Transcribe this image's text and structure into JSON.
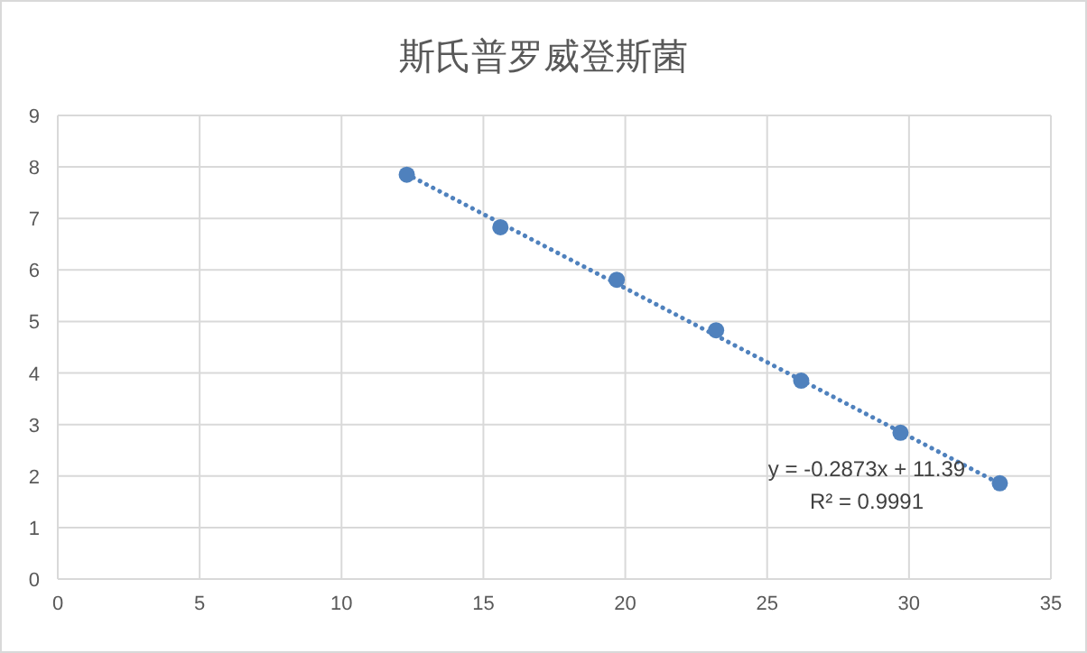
{
  "chart_data": {
    "type": "scatter",
    "title": "斯氏普罗威登斯菌",
    "x": [
      12.3,
      15.6,
      19.7,
      23.2,
      26.2,
      29.7,
      33.2
    ],
    "series": [
      {
        "color": "#4f81bd",
        "marker": "circle",
        "values": [
          7.85,
          6.83,
          5.81,
          4.83,
          3.85,
          2.84,
          1.86
        ]
      },
      {
        "type": "line",
        "color": "#4f81bd",
        "line_style": "dotted",
        "marker": "none",
        "x": [
          12.3,
          33.2
        ],
        "values": [
          7.86,
          1.85
        ]
      }
    ],
    "xlim": [
      0,
      35
    ],
    "ylim": [
      0,
      9
    ],
    "xticks": [
      0,
      5,
      10,
      15,
      20,
      25,
      30,
      35
    ],
    "yticks": [
      0,
      1,
      2,
      3,
      4,
      5,
      6,
      7,
      8,
      9
    ],
    "grid": true,
    "annotations": [
      "y = -0.2873x + 11.39",
      "R² = 0.9991"
    ]
  }
}
